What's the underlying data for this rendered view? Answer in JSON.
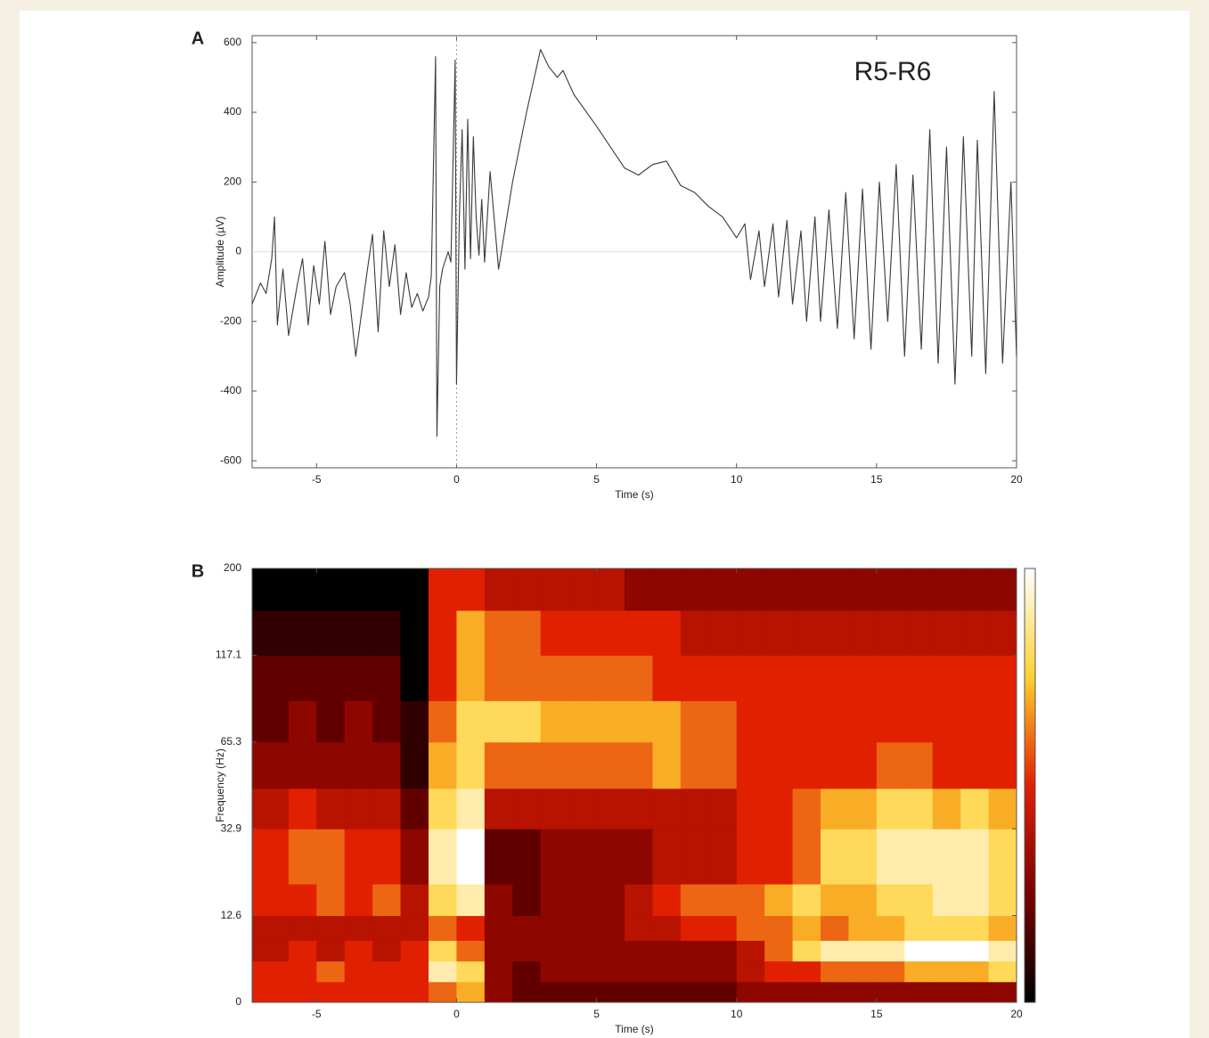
{
  "chart_data": [
    {
      "type": "line",
      "panel": "A",
      "annotation": "R5-R6",
      "xlabel": "Time (s)",
      "ylabel": "Amplitude (µV)",
      "color": "#3a3a3a",
      "xlim": [
        -7.3,
        20
      ],
      "ylim": [
        -620,
        620
      ],
      "xticks": [
        -5,
        0,
        5,
        10,
        15,
        20
      ],
      "yticks": [
        -600,
        -400,
        -200,
        0,
        200,
        400,
        600
      ],
      "hline": 0,
      "vline": 0,
      "x": [
        -7.3,
        -7.0,
        -6.8,
        -6.6,
        -6.5,
        -6.4,
        -6.2,
        -6.0,
        -5.7,
        -5.5,
        -5.3,
        -5.1,
        -4.9,
        -4.7,
        -4.5,
        -4.3,
        -4.0,
        -3.8,
        -3.6,
        -3.4,
        -3.2,
        -3.0,
        -2.8,
        -2.6,
        -2.4,
        -2.2,
        -2.0,
        -1.8,
        -1.6,
        -1.4,
        -1.2,
        -1.0,
        -0.9,
        -0.75,
        -0.7,
        -0.6,
        -0.5,
        -0.3,
        -0.2,
        -0.05,
        0.0,
        0.1,
        0.2,
        0.3,
        0.4,
        0.5,
        0.6,
        0.7,
        0.8,
        0.9,
        1.0,
        1.2,
        1.5,
        2.0,
        2.5,
        3.0,
        3.3,
        3.6,
        3.8,
        4.2,
        5.0,
        5.5,
        6.0,
        6.5,
        7.0,
        7.5,
        8.0,
        8.5,
        9.0,
        9.5,
        10.0,
        10.3,
        10.5,
        10.8,
        11.0,
        11.3,
        11.5,
        11.8,
        12.0,
        12.3,
        12.5,
        12.8,
        13.0,
        13.3,
        13.6,
        13.9,
        14.2,
        14.5,
        14.8,
        15.1,
        15.4,
        15.7,
        16.0,
        16.3,
        16.6,
        16.9,
        17.2,
        17.5,
        17.8,
        18.1,
        18.4,
        18.6,
        18.9,
        19.2,
        19.5,
        19.8,
        20.0
      ],
      "values": [
        -150,
        -90,
        -120,
        -20,
        100,
        -210,
        -50,
        -240,
        -100,
        -20,
        -210,
        -40,
        -150,
        30,
        -180,
        -100,
        -60,
        -150,
        -300,
        -180,
        -60,
        50,
        -230,
        60,
        -100,
        20,
        -180,
        -60,
        -160,
        -120,
        -170,
        -130,
        -70,
        560,
        -530,
        -100,
        -50,
        0,
        -30,
        550,
        -380,
        100,
        350,
        -50,
        380,
        -20,
        330,
        100,
        -10,
        150,
        -30,
        230,
        -50,
        200,
        400,
        580,
        530,
        500,
        520,
        450,
        360,
        300,
        240,
        220,
        250,
        260,
        190,
        170,
        130,
        100,
        40,
        80,
        -80,
        60,
        -100,
        80,
        -130,
        90,
        -150,
        60,
        -200,
        100,
        -200,
        120,
        -220,
        170,
        -250,
        180,
        -280,
        200,
        -200,
        250,
        -300,
        220,
        -280,
        350,
        -320,
        300,
        -380,
        330,
        -300,
        320,
        -350,
        460,
        -320,
        200,
        -300
      ]
    },
    {
      "type": "heatmap",
      "panel": "B",
      "xlabel": "Time (s)",
      "ylabel": "Frequency (Hz)",
      "xlim": [
        -7.3,
        20
      ],
      "ylim": [
        0,
        200
      ],
      "xticks": [
        -5,
        0,
        5,
        10,
        15,
        20
      ],
      "yticks": [
        0,
        12.6,
        32.9,
        65.3,
        117.1,
        200
      ],
      "yscale": "tick-spaced",
      "zlim": [
        0,
        1
      ],
      "colormap": [
        "#000000",
        "#7a0000",
        "#e02000",
        "#ffd030",
        "#ffffff"
      ],
      "x_bins": [
        -7.3,
        -6,
        -5,
        -4,
        -3,
        -2,
        -1,
        0,
        1,
        2,
        3,
        4,
        5,
        6,
        7,
        8,
        9,
        10,
        11,
        12,
        13,
        14,
        15,
        16,
        17,
        18,
        19,
        20
      ],
      "y_bins": [
        0,
        3,
        6,
        9,
        12.6,
        20,
        32.9,
        48,
        65.3,
        90,
        117.1,
        160,
        200
      ],
      "values": [
        [
          0.5,
          0.5,
          0.5,
          0.5,
          0.5,
          0.5,
          0.6,
          0.7,
          0.3,
          0.2,
          0.2,
          0.2,
          0.2,
          0.2,
          0.2,
          0.2,
          0.2,
          0.3,
          0.3,
          0.3,
          0.3,
          0.3,
          0.3,
          0.3,
          0.3,
          0.3,
          0.3
        ],
        [
          0.5,
          0.5,
          0.6,
          0.5,
          0.5,
          0.5,
          0.9,
          0.8,
          0.3,
          0.2,
          0.3,
          0.3,
          0.3,
          0.3,
          0.3,
          0.3,
          0.3,
          0.4,
          0.5,
          0.5,
          0.6,
          0.6,
          0.6,
          0.7,
          0.7,
          0.7,
          0.8
        ],
        [
          0.4,
          0.5,
          0.4,
          0.5,
          0.4,
          0.5,
          0.8,
          0.6,
          0.3,
          0.3,
          0.3,
          0.3,
          0.3,
          0.3,
          0.3,
          0.3,
          0.3,
          0.4,
          0.6,
          0.8,
          0.9,
          0.9,
          0.9,
          1.0,
          1.0,
          1.0,
          0.9
        ],
        [
          0.4,
          0.4,
          0.4,
          0.4,
          0.4,
          0.4,
          0.6,
          0.5,
          0.3,
          0.3,
          0.3,
          0.3,
          0.3,
          0.4,
          0.4,
          0.5,
          0.5,
          0.6,
          0.6,
          0.7,
          0.6,
          0.7,
          0.7,
          0.8,
          0.8,
          0.8,
          0.7
        ],
        [
          0.5,
          0.5,
          0.6,
          0.5,
          0.6,
          0.4,
          0.8,
          0.9,
          0.3,
          0.2,
          0.3,
          0.3,
          0.3,
          0.4,
          0.5,
          0.6,
          0.6,
          0.6,
          0.7,
          0.8,
          0.7,
          0.7,
          0.8,
          0.8,
          0.9,
          0.9,
          0.8
        ],
        [
          0.5,
          0.6,
          0.6,
          0.5,
          0.5,
          0.3,
          0.9,
          1.0,
          0.2,
          0.2,
          0.3,
          0.3,
          0.3,
          0.3,
          0.4,
          0.4,
          0.4,
          0.5,
          0.5,
          0.6,
          0.8,
          0.8,
          0.9,
          0.9,
          0.9,
          0.9,
          0.8
        ],
        [
          0.4,
          0.5,
          0.4,
          0.4,
          0.4,
          0.2,
          0.8,
          0.9,
          0.4,
          0.4,
          0.4,
          0.4,
          0.4,
          0.4,
          0.4,
          0.4,
          0.4,
          0.5,
          0.5,
          0.6,
          0.7,
          0.7,
          0.8,
          0.8,
          0.7,
          0.8,
          0.7
        ],
        [
          0.3,
          0.3,
          0.3,
          0.3,
          0.3,
          0.1,
          0.7,
          0.8,
          0.6,
          0.6,
          0.6,
          0.6,
          0.6,
          0.6,
          0.7,
          0.6,
          0.6,
          0.5,
          0.5,
          0.5,
          0.5,
          0.5,
          0.6,
          0.6,
          0.5,
          0.5,
          0.5
        ],
        [
          0.2,
          0.3,
          0.2,
          0.3,
          0.2,
          0.1,
          0.6,
          0.8,
          0.8,
          0.8,
          0.7,
          0.7,
          0.7,
          0.7,
          0.7,
          0.6,
          0.6,
          0.5,
          0.5,
          0.5,
          0.5,
          0.5,
          0.5,
          0.5,
          0.5,
          0.5,
          0.5
        ],
        [
          0.2,
          0.2,
          0.2,
          0.2,
          0.2,
          0.0,
          0.5,
          0.7,
          0.6,
          0.6,
          0.6,
          0.6,
          0.6,
          0.6,
          0.5,
          0.5,
          0.5,
          0.5,
          0.5,
          0.5,
          0.5,
          0.5,
          0.5,
          0.5,
          0.5,
          0.5,
          0.5
        ],
        [
          0.1,
          0.1,
          0.1,
          0.1,
          0.1,
          0.0,
          0.5,
          0.7,
          0.6,
          0.6,
          0.5,
          0.5,
          0.5,
          0.5,
          0.5,
          0.4,
          0.4,
          0.4,
          0.4,
          0.4,
          0.4,
          0.4,
          0.4,
          0.4,
          0.4,
          0.4,
          0.4
        ],
        [
          0.0,
          0.0,
          0.0,
          0.0,
          0.0,
          0.0,
          0.5,
          0.5,
          0.4,
          0.4,
          0.4,
          0.4,
          0.4,
          0.3,
          0.3,
          0.3,
          0.3,
          0.3,
          0.3,
          0.3,
          0.3,
          0.3,
          0.3,
          0.3,
          0.3,
          0.3,
          0.3
        ]
      ]
    }
  ]
}
